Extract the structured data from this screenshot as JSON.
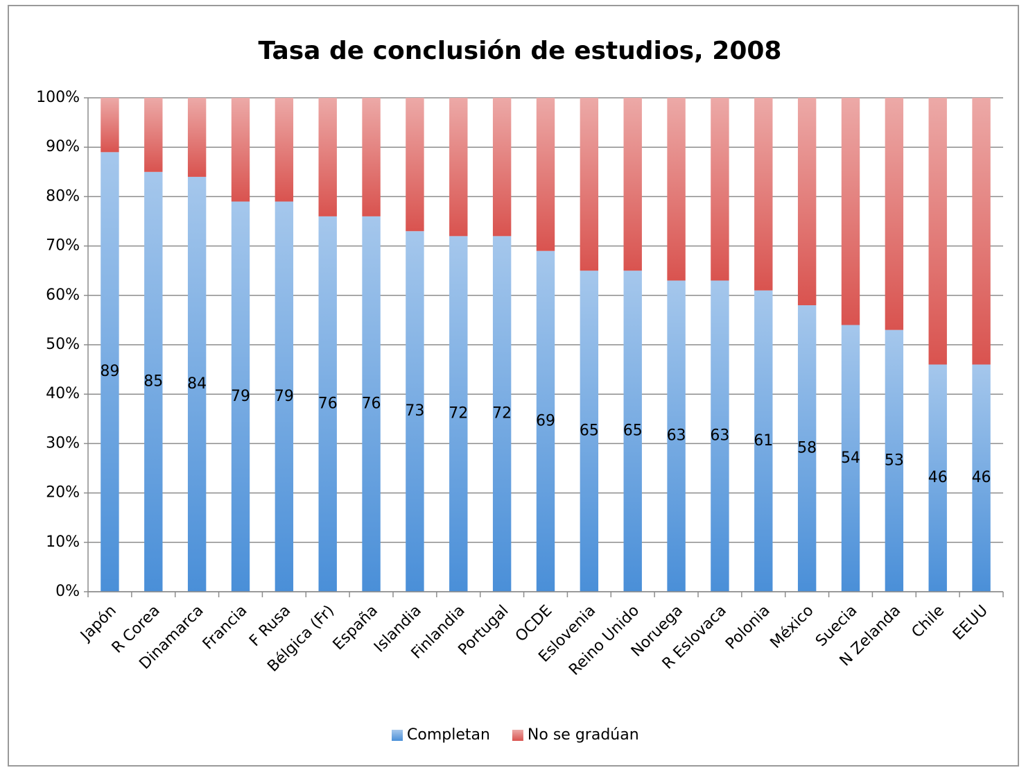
{
  "chart_data": {
    "type": "stacked_bar",
    "title": "Tasa de conclusión de estudios, 2008",
    "categories": [
      "Japón",
      "R Corea",
      "Dinamarca",
      "Francia",
      "F Rusa",
      "Bélgica (Fr)",
      "España",
      "Islandia",
      "Finlandia",
      "Portugal",
      "OCDE",
      "Eslovenia",
      "Reino Unido",
      "Noruega",
      "R Eslovaca",
      "Polonia",
      "México",
      "Suecia",
      "N Zelanda",
      "Chile",
      "EEUU"
    ],
    "series": [
      {
        "name": "Completan",
        "color": "#4a8fd8",
        "values": [
          89,
          85,
          84,
          79,
          79,
          76,
          76,
          73,
          72,
          72,
          69,
          65,
          65,
          63,
          63,
          61,
          58,
          54,
          53,
          46,
          46
        ]
      },
      {
        "name": "No se gradúan",
        "color": "#d9534f",
        "values": [
          11,
          15,
          16,
          21,
          21,
          24,
          24,
          27,
          28,
          28,
          31,
          35,
          35,
          37,
          37,
          39,
          42,
          46,
          47,
          54,
          54
        ]
      }
    ],
    "data_labels_series": 0,
    "ylim": [
      0,
      100
    ],
    "yticks": [
      {
        "value": 0,
        "label": "0%"
      },
      {
        "value": 10,
        "label": "10%"
      },
      {
        "value": 20,
        "label": "20%"
      },
      {
        "value": 30,
        "label": "30%"
      },
      {
        "value": 40,
        "label": "40%"
      },
      {
        "value": 50,
        "label": "50%"
      },
      {
        "value": 60,
        "label": "60%"
      },
      {
        "value": 70,
        "label": "70%"
      },
      {
        "value": 80,
        "label": "80%"
      },
      {
        "value": 90,
        "label": "90%"
      },
      {
        "value": 100,
        "label": "100%"
      }
    ],
    "grid": true,
    "legend": "bottom"
  }
}
